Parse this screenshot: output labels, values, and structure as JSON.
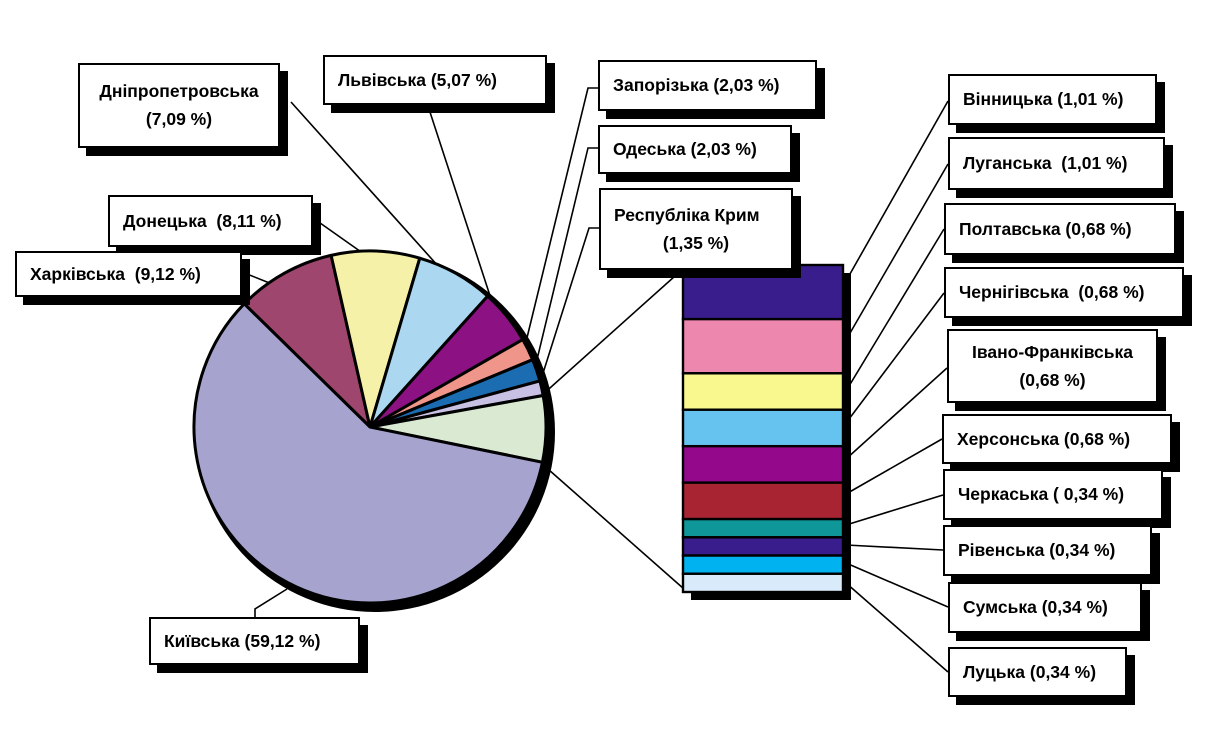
{
  "chart_data": {
    "type": "pie",
    "variant": "bar-of-pie",
    "title": "",
    "unit": "%",
    "decimal_style": "comma",
    "legend": "none",
    "pie": {
      "start_angle_deg_from_north": -45.6,
      "direction": "clockwise",
      "slices": [
        {
          "id": "kharkiv",
          "name": "Харківська",
          "value": 9.12,
          "color": "#9f466f"
        },
        {
          "id": "donetsk",
          "name": "Донецька",
          "value": 8.11,
          "color": "#f5f1a8"
        },
        {
          "id": "dnipro",
          "name": "Дніпропетровська",
          "value": 7.09,
          "color": "#abd7f0"
        },
        {
          "id": "lviv",
          "name": "Львівська",
          "value": 5.07,
          "color": "#8c1283"
        },
        {
          "id": "zapor",
          "name": "Запорізька",
          "value": 2.03,
          "color": "#ef9589"
        },
        {
          "id": "odesa",
          "name": "Одеська",
          "value": 2.03,
          "color": "#1b6cb0"
        },
        {
          "id": "krym",
          "name": "Республіка Крим",
          "value": 1.35,
          "color": "#c9c1e4"
        },
        {
          "id": "other",
          "name": "other-group",
          "value": 6.08,
          "color": "#d9e9d2"
        },
        {
          "id": "kyiv",
          "name": "Київська",
          "value": 59.12,
          "color": "#a6a4ce"
        }
      ]
    },
    "bar": {
      "segments": [
        {
          "id": "vinnytsia",
          "name": "Вінницька",
          "value": 1.01,
          "color": "#3a1d8c"
        },
        {
          "id": "luhansk",
          "name": "Луганська",
          "value": 1.01,
          "color": "#ee87ae"
        },
        {
          "id": "poltava",
          "name": "Полтавська",
          "value": 0.68,
          "color": "#f8f88e"
        },
        {
          "id": "chernihiv",
          "name": "Чернігівська",
          "value": 0.68,
          "color": "#66c2ee"
        },
        {
          "id": "ivano",
          "name": "Івано-Франківська",
          "value": 0.68,
          "color": "#94088c"
        },
        {
          "id": "kherson",
          "name": "Херсонська",
          "value": 0.68,
          "color": "#a82432"
        },
        {
          "id": "cherkasy",
          "name": "Черкаська",
          "value": 0.34,
          "color": "#0e9698"
        },
        {
          "id": "rivne",
          "name": "Рівенська",
          "value": 0.34,
          "color": "#3a1d8c"
        },
        {
          "id": "sumy",
          "name": "Сумська",
          "value": 0.34,
          "color": "#00b2ef"
        },
        {
          "id": "lutsk",
          "name": "Луцька",
          "value": 0.34,
          "color": "#d9eafa"
        }
      ]
    }
  },
  "labels": {
    "dnipro": {
      "line1": "Дніпропетровська",
      "line2": "(7,09 %)"
    },
    "lviv": {
      "line1": "Львівська (5,07 %)"
    },
    "zapor": {
      "line1": "Запорізька (2,03 %)"
    },
    "odesa": {
      "line1": "Одеська (2,03 %)"
    },
    "krym": {
      "line1": "Республіка Крим",
      "line2": "(1,35 %)"
    },
    "donetsk": {
      "line1": "Донецька  (8,11 %)"
    },
    "kharkiv": {
      "line1": "Харківська  (9,12 %)"
    },
    "kyiv": {
      "line1": "Київська (59,12 %)"
    },
    "vinnytsia": {
      "line1": "Вінницька (1,01 %)"
    },
    "luhansk": {
      "line1": "Луганська  (1,01 %)"
    },
    "poltava": {
      "line1": "Полтавська (0,68 %)"
    },
    "chernihiv": {
      "line1": "Чернігівська  (0,68 %)"
    },
    "ivano": {
      "line1": "Івано-Франківська",
      "line2": "(0,68 %)"
    },
    "kherson": {
      "line1": "Херсонська (0,68 %)"
    },
    "cherkasy": {
      "line1": "Черкаська ( 0,34 %)"
    },
    "rivne": {
      "line1": "Рівенська (0,34 %)"
    },
    "sumy": {
      "line1": "Сумська (0,34 %)"
    },
    "lutsk": {
      "line1": "Луцька (0,34 %)"
    }
  },
  "colors": {
    "background": "#ffffff",
    "outline": "#000000",
    "box_fill": "#ffffff",
    "box_shadow": "#000000"
  }
}
